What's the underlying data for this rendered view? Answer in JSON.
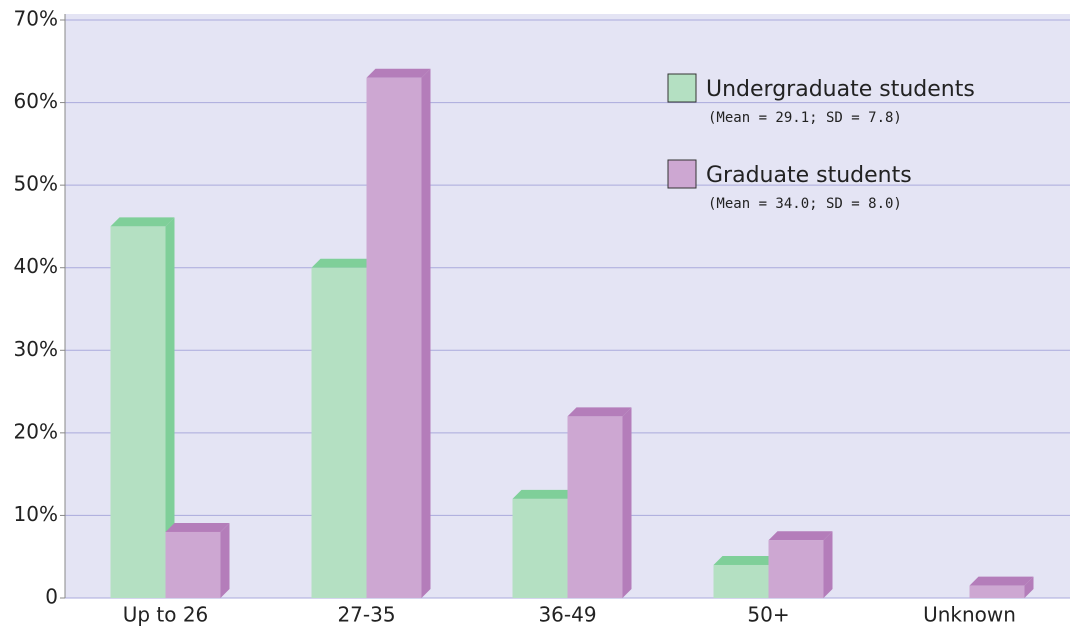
{
  "chart_data": {
    "type": "bar3d",
    "categories": [
      "Up to 26",
      "27-35",
      "36-49",
      "50+",
      "Unknown"
    ],
    "series": [
      {
        "name": "Undergraduate students",
        "note": "(Mean = 29.1; SD = 7.8)",
        "color": "#b4e0c2",
        "top_color": "#7fcf99",
        "values": [
          45,
          40,
          12,
          4,
          0
        ]
      },
      {
        "name": "Graduate students",
        "note": "(Mean = 34.0; SD = 8.0)",
        "color": "#cda7d2",
        "top_color": "#b47dba",
        "values": [
          8,
          63,
          22,
          7,
          1.5
        ]
      }
    ],
    "ylim": [
      0,
      70
    ],
    "yticks": [
      0,
      {
        "value": 10,
        "label": "10%"
      },
      {
        "value": 20,
        "label": "20%"
      },
      {
        "value": 30,
        "label": "30%"
      },
      {
        "value": 40,
        "label": "40%"
      },
      {
        "value": 50,
        "label": "50%"
      },
      {
        "value": 60,
        "label": "60%"
      },
      {
        "value": 70,
        "label": "70%"
      }
    ],
    "grid": true
  }
}
